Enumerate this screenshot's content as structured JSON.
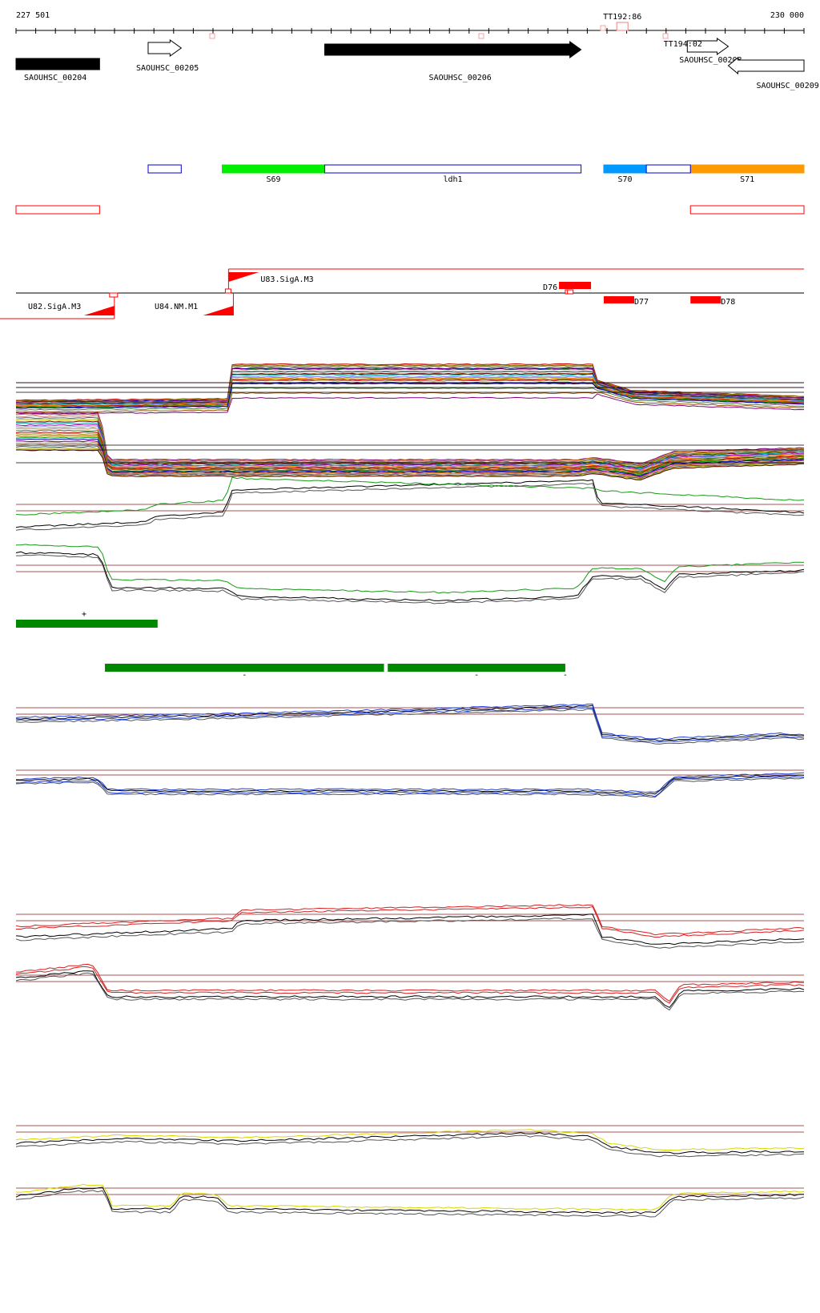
{
  "ruler": {
    "start_label": "227 501",
    "end_label": "230 000"
  },
  "terminators": [
    {
      "label": "TT192:86",
      "pos": 229424
    },
    {
      "label": "TT194:02",
      "pos": 229616
    }
  ],
  "genes": [
    {
      "id": "SAOUHSC_00204",
      "start": 227501,
      "end": 227766,
      "strand": "+",
      "style": "filled"
    },
    {
      "id": "SAOUHSC_00205",
      "start": 227920,
      "end": 228025,
      "strand": "+",
      "style": "open"
    },
    {
      "id": "SAOUHSC_00206",
      "start": 228480,
      "end": 229293,
      "strand": "+",
      "style": "filled"
    },
    {
      "id": "SAOUHSC_00208",
      "start": 229630,
      "end": 229760,
      "strand": "+",
      "style": "open"
    },
    {
      "id": "SAOUHSC_00209",
      "start": 229760,
      "end": 230000,
      "strand": "-",
      "style": "open"
    }
  ],
  "segments": [
    {
      "label": "S69",
      "start": 228155,
      "end": 228480,
      "color": "#00ee00"
    },
    {
      "label": "ldh1",
      "start": 228480,
      "end": 229293,
      "color": "#ffffff",
      "stroke": "#0000cc"
    },
    {
      "label": "S70",
      "start": 229365,
      "end": 229500,
      "color": "#0099ff"
    },
    {
      "label": "S71",
      "start": 229640,
      "end": 230000,
      "color": "#ff9900"
    }
  ],
  "promoters": [
    {
      "label": "U82.SigA.M3",
      "pos": 227813
    },
    {
      "label": "U84.NM.M1",
      "pos": 228170
    },
    {
      "label": "U83.SigA.M3",
      "pos": 228175
    }
  ],
  "terminator_features": [
    {
      "label": "D76",
      "pos": 229223
    },
    {
      "label": "D77",
      "pos": 229365
    },
    {
      "label": "D78",
      "pos": 229640
    }
  ],
  "conditions_strand": [
    {
      "label": "+",
      "start": 227501,
      "end": 227950
    },
    {
      "label": "-",
      "start": 227783,
      "end": 228668
    },
    {
      "label": "-",
      "start": 228680,
      "end": 229243
    },
    {
      "label": "-",
      "start": 229243,
      "end": 229243
    }
  ],
  "colors": {
    "green_bar": "#008800",
    "red_feature": "#ff0000",
    "blue_box": "#0000cc",
    "threshold_line": "#8b1a1a",
    "track_blue": "#1f3fd6",
    "track_red": "#d62020",
    "track_yellow": "#d8d800",
    "track_green": "#129c12"
  }
}
